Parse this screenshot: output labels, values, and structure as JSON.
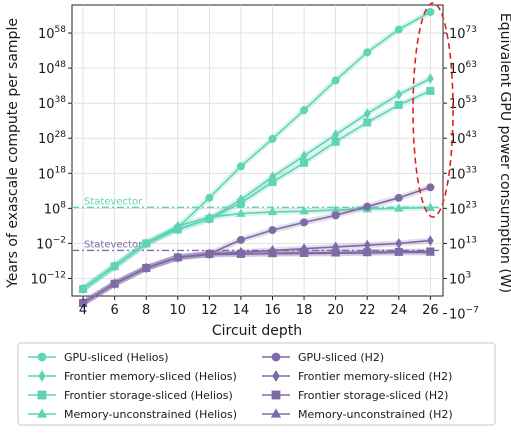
{
  "chart_data": {
    "type": "line",
    "title": "",
    "xlabel": "Circuit depth",
    "ylabel": "Years of exascale compute per sample",
    "y2label": "Equivalent GPU power consumption (W)",
    "x": [
      4,
      6,
      8,
      10,
      12,
      14,
      16,
      18,
      20,
      22,
      24,
      26
    ],
    "xticks": [
      "4",
      "6",
      "8",
      "10",
      "12",
      "14",
      "16",
      "18",
      "20",
      "22",
      "24",
      "26"
    ],
    "xlim": [
      3.3,
      26.8
    ],
    "ylim_log10": [
      -17,
      66
    ],
    "y_scale": "log",
    "yticks": [
      {
        "base": "10",
        "exp": "58",
        "value_log10": 58
      },
      {
        "base": "10",
        "exp": "48",
        "value_log10": 48
      },
      {
        "base": "10",
        "exp": "38",
        "value_log10": 38
      },
      {
        "base": "10",
        "exp": "28",
        "value_log10": 28
      },
      {
        "base": "10",
        "exp": "18",
        "value_log10": 18
      },
      {
        "base": "10",
        "exp": "8",
        "value_log10": 8
      },
      {
        "base": "10",
        "exp": "−2",
        "value_log10": -2
      },
      {
        "base": "10",
        "exp": "−12",
        "value_log10": -12
      }
    ],
    "y2ticks": [
      {
        "base": "10",
        "exp": "73",
        "value_log10": 73
      },
      {
        "base": "10",
        "exp": "63",
        "value_log10": 63
      },
      {
        "base": "10",
        "exp": "53",
        "value_log10": 53
      },
      {
        "base": "10",
        "exp": "43",
        "value_log10": 43
      },
      {
        "base": "10",
        "exp": "33",
        "value_log10": 33
      },
      {
        "base": "10",
        "exp": "23",
        "value_log10": 23
      },
      {
        "base": "10",
        "exp": "13",
        "value_log10": 13
      },
      {
        "base": "10",
        "exp": "3",
        "value_log10": 3
      },
      {
        "base": "10",
        "exp": "−7",
        "value_log10": -7
      }
    ],
    "y2_offset_log10": 15,
    "grid": true,
    "legend_position": "bottom",
    "reference_lines": [
      {
        "label": "Statevector",
        "value_log10": 8.3,
        "color": "#5fd3b6"
      },
      {
        "label": "Statevector",
        "value_log10": -4,
        "color": "#7e6aa6"
      }
    ],
    "highlight": {
      "type": "dashed-ellipse",
      "color": "#e02020",
      "around_x": 26
    },
    "series": [
      {
        "name": "GPU-sliced (Helios)",
        "color": "#5fd3b6",
        "marker": "circle",
        "values_log10": [
          -15.0,
          -8.5,
          -2.0,
          2.5,
          11.0,
          20.0,
          27.8,
          36.0,
          44.5,
          52.5,
          59.0,
          64.0
        ]
      },
      {
        "name": "Frontier memory-sliced (Helios)",
        "color": "#5fd3b6",
        "marker": "diamond",
        "values_log10": [
          -15.0,
          -8.5,
          -2.0,
          2.0,
          5.0,
          10.5,
          17.0,
          23.0,
          29.0,
          35.0,
          40.5,
          45.0
        ]
      },
      {
        "name": "Frontier storage-sliced (Helios)",
        "color": "#5fd3b6",
        "marker": "square",
        "values_log10": [
          -15.0,
          -8.5,
          -2.0,
          2.0,
          5.0,
          9.5,
          15.5,
          21.0,
          27.0,
          32.5,
          37.5,
          41.5
        ]
      },
      {
        "name": "Memory-unconstrained (Helios)",
        "color": "#5fd3b6",
        "marker": "triangle",
        "values_log10": [
          -15.0,
          -8.5,
          -2.0,
          3.0,
          5.5,
          6.5,
          7.0,
          7.2,
          7.5,
          7.8,
          8.0,
          8.2
        ]
      },
      {
        "name": "GPU-sliced (H2)",
        "color": "#7e6aa6",
        "marker": "circle",
        "values_log10": [
          -19.0,
          -13.5,
          -9.0,
          -6.0,
          -5.0,
          -1.0,
          1.8,
          4.0,
          6.0,
          8.5,
          11.0,
          14.0
        ]
      },
      {
        "name": "Frontier memory-sliced (H2)",
        "color": "#7e6aa6",
        "marker": "diamond",
        "values_log10": [
          -19.0,
          -13.5,
          -9.0,
          -6.0,
          -5.0,
          -4.5,
          -4.0,
          -3.5,
          -3.0,
          -2.5,
          -2.0,
          -1.2
        ]
      },
      {
        "name": "Frontier storage-sliced (H2)",
        "color": "#7e6aa6",
        "marker": "square",
        "values_log10": [
          -19.0,
          -13.5,
          -9.0,
          -6.0,
          -5.0,
          -5.0,
          -4.8,
          -4.7,
          -4.6,
          -4.5,
          -4.4,
          -4.3
        ]
      },
      {
        "name": "Memory-unconstrained (H2)",
        "color": "#7e6aa6",
        "marker": "triangle",
        "values_log10": [
          -19.0,
          -13.5,
          -9.0,
          -6.0,
          -5.2,
          -5.0,
          -4.9,
          -4.9,
          -4.8,
          -4.7,
          -4.6,
          -4.6
        ]
      }
    ]
  }
}
